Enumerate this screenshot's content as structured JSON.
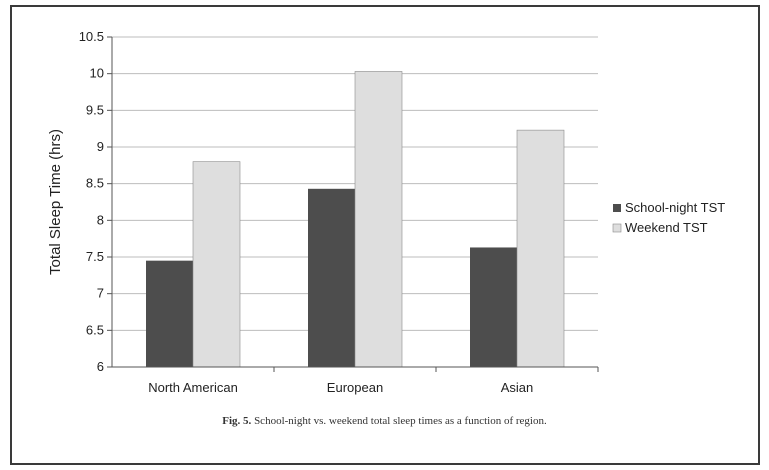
{
  "chart_data": {
    "type": "bar",
    "categories": [
      "North American",
      "European",
      "Asian"
    ],
    "series": [
      {
        "name": "School-night TST",
        "values": [
          7.45,
          8.43,
          7.63
        ],
        "color": "#4d4d4d"
      },
      {
        "name": "Weekend TST",
        "values": [
          8.8,
          10.03,
          9.23
        ],
        "color": "#dedede"
      }
    ],
    "ylabel": "Total Sleep Time (hrs)",
    "xlabel": "",
    "ylim": [
      6,
      10.5
    ],
    "yticks": [
      "6",
      "6.5",
      "7",
      "7.5",
      "8",
      "8.5",
      "9",
      "9.5",
      "10",
      "10.5"
    ],
    "grid": true,
    "legend_position": "right"
  },
  "caption": {
    "fig_label": "Fig. 5.",
    "text": "School-night vs. weekend total sleep times as a function of region."
  }
}
